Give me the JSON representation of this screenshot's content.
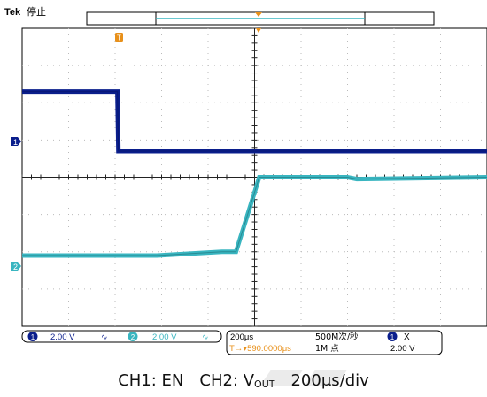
{
  "scope": {
    "brand": "Tek",
    "run_state": "停止",
    "trigger_tag": "T",
    "ch1_marker": "1",
    "ch2_marker": "2",
    "colors": {
      "ch1": "#0a1e8c",
      "ch2": "#39b5c0",
      "trigger": "#e8901a",
      "grid": "#cfcfcf",
      "frame": "#000000"
    }
  },
  "status_bar": {
    "ch1": {
      "num": "1",
      "volts": "2.00 V",
      "coupling": "∿"
    },
    "ch2": {
      "num": "2",
      "volts": "2.00 V",
      "coupling": "∿"
    },
    "timebase": "200μs",
    "trigger_pos": "T→▾590.0000μs",
    "sample_rate": "500M次/秒",
    "record_length": "1M 点",
    "trig_source": "1",
    "trig_slope": "X",
    "trig_level": "2.00 V"
  },
  "caption": {
    "ch1": "CH1: EN",
    "ch2_prefix": "CH2: V",
    "ch2_sub": "OUT",
    "timebase": "200μs/div"
  },
  "chart_data": {
    "type": "line",
    "x_unit": "div",
    "xlim": [
      0,
      10
    ],
    "ylim": [
      -4,
      4
    ],
    "y_unit": "div",
    "series": [
      {
        "name": "CH1: EN",
        "x": [
          0,
          2.05,
          2.07,
          10
        ],
        "y": [
          2.3,
          2.3,
          0.7,
          0.7
        ]
      },
      {
        "name": "CH2: V",
        "x": [
          0,
          2.9,
          4.3,
          4.6,
          5.1,
          7.0,
          7.2,
          10
        ],
        "y": [
          -2.1,
          -2.1,
          -2.0,
          -2.0,
          0.0,
          0.0,
          -0.05,
          0.0
        ]
      }
    ]
  }
}
